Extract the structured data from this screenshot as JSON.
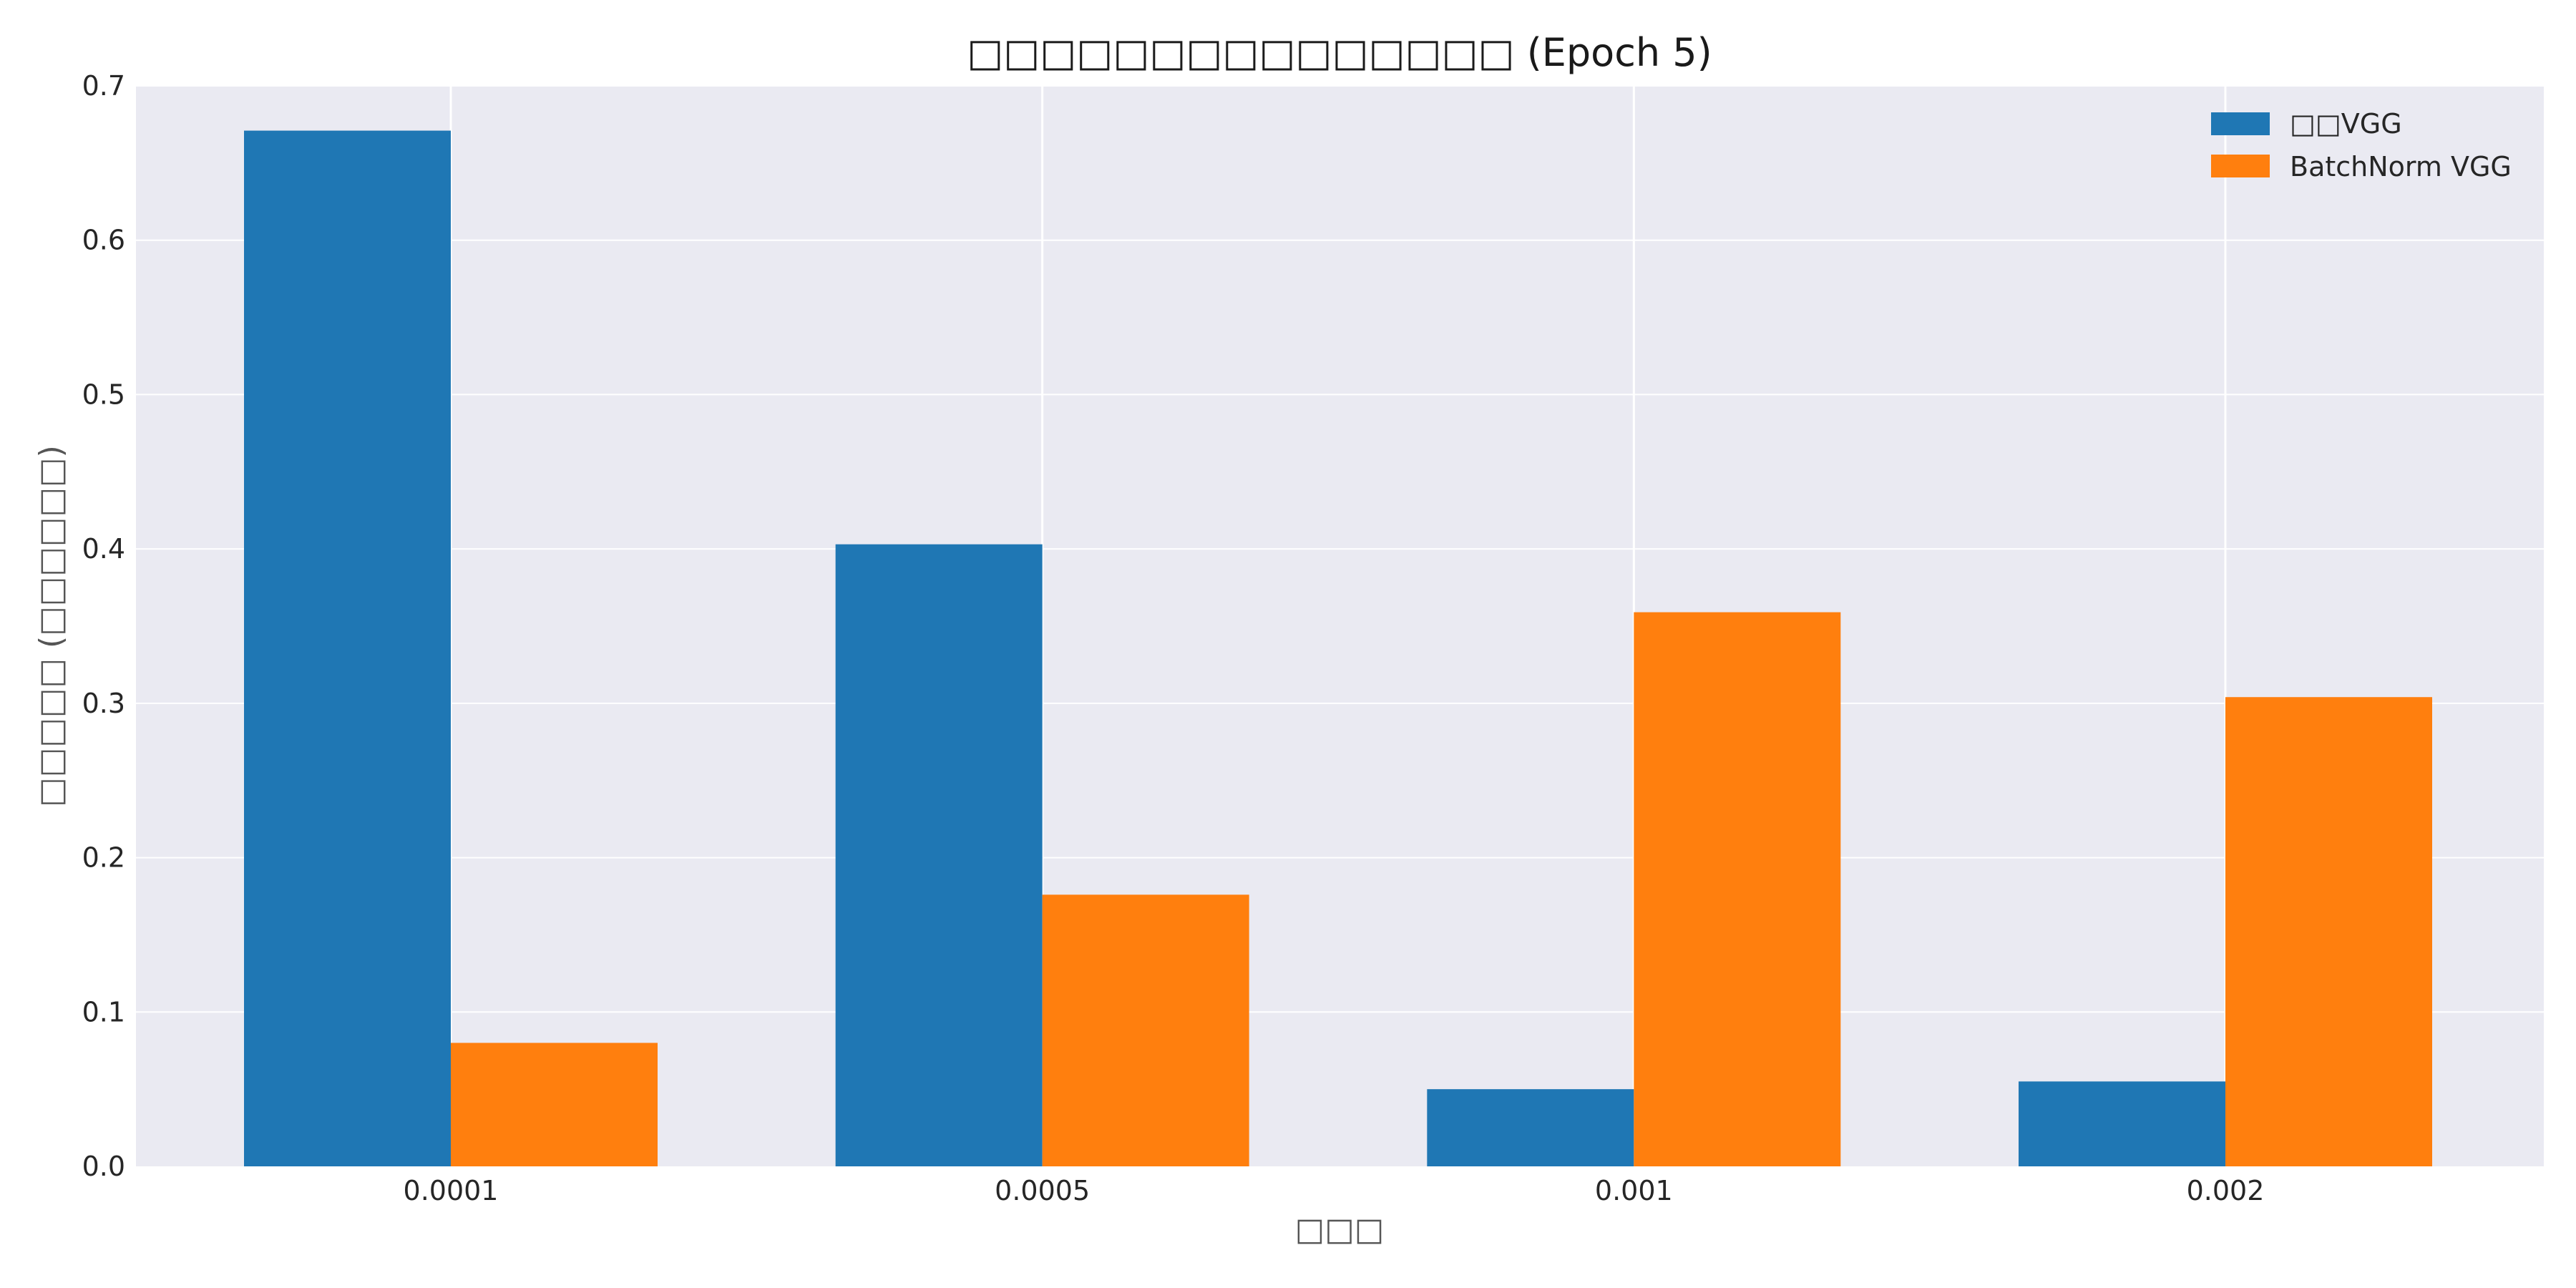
{
  "chart_data": {
    "type": "bar",
    "title": "□□□□□□□□□□□□□□□ (Epoch 5)",
    "xlabel": "□□□",
    "ylabel": "□□□□□ (□□□□□□)",
    "categories": [
      "0.0001",
      "0.0005",
      "0.001",
      "0.002"
    ],
    "series": [
      {
        "name": "□□VGG",
        "color": "#1f77b4",
        "values": [
          0.671,
          0.403,
          0.05,
          0.055
        ]
      },
      {
        "name": "BatchNorm VGG",
        "color": "#ff7f0e",
        "values": [
          0.08,
          0.176,
          0.359,
          0.304
        ]
      }
    ],
    "ylim": [
      0,
      0.7
    ],
    "yticks": [
      "0.0",
      "0.1",
      "0.2",
      "0.3",
      "0.4",
      "0.5",
      "0.6",
      "0.7"
    ],
    "grid": true,
    "legend_position": "top-right",
    "background_color": "#eaeaf2",
    "grid_color": "#ffffff"
  }
}
